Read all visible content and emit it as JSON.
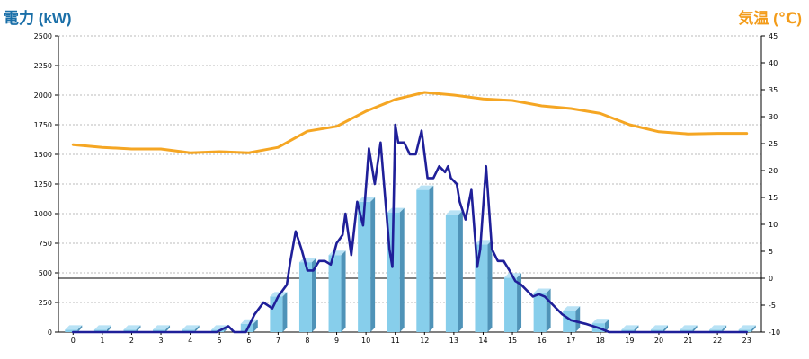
{
  "chart_data": {
    "type": "bar",
    "left_axis_title": "電力 (kW)",
    "right_axis_title": "気温 (℃)",
    "left_axis": {
      "min": 0,
      "max": 2500,
      "step": 250,
      "tick_labels": [
        "0",
        "250",
        "500",
        "750",
        "1000",
        "1250",
        "1500",
        "1750",
        "2000",
        "2250",
        "2500"
      ]
    },
    "right_axis": {
      "min": -10,
      "max": 45,
      "step": 5,
      "tick_labels": [
        "-10",
        "-5",
        "0",
        "5",
        "10",
        "15",
        "20",
        "25",
        "30",
        "35",
        "40",
        "45"
      ]
    },
    "categories": [
      "0",
      "1",
      "2",
      "3",
      "4",
      "5",
      "6",
      "7",
      "8",
      "9",
      "10",
      "11",
      "12",
      "13",
      "14",
      "15",
      "16",
      "17",
      "18",
      "19",
      "20",
      "21",
      "22",
      "23"
    ],
    "grid": "horizontal dashed",
    "zero_line_on_right_axis": 0,
    "series": [
      {
        "kind": "bar",
        "axis": "left",
        "color": "#87ceeb",
        "values": [
          20,
          20,
          20,
          20,
          20,
          20,
          70,
          300,
          590,
          650,
          1100,
          1010,
          1200,
          990,
          740,
          460,
          330,
          180,
          75,
          20,
          20,
          20,
          20,
          20
        ]
      },
      {
        "kind": "line",
        "axis": "right",
        "color": "#f5a623",
        "points": [
          [
            0,
            24.8
          ],
          [
            1,
            24.3
          ],
          [
            2,
            24.0
          ],
          [
            3,
            24.0
          ],
          [
            4,
            23.3
          ],
          [
            5,
            23.5
          ],
          [
            6,
            23.3
          ],
          [
            7,
            24.3
          ],
          [
            8,
            27.3
          ],
          [
            9,
            28.2
          ],
          [
            10,
            31.0
          ],
          [
            11,
            33.2
          ],
          [
            12,
            34.5
          ],
          [
            13,
            34.0
          ],
          [
            14,
            33.3
          ],
          [
            15,
            33.0
          ],
          [
            16,
            32.0
          ],
          [
            17,
            31.5
          ],
          [
            18,
            30.6
          ],
          [
            19,
            28.5
          ],
          [
            20,
            27.2
          ],
          [
            21,
            26.8
          ],
          [
            22,
            26.9
          ],
          [
            23,
            26.9
          ]
        ]
      },
      {
        "kind": "line",
        "axis": "left",
        "color": "#1f1f99",
        "points": [
          [
            0,
            0
          ],
          [
            4.9,
            0
          ],
          [
            5.3,
            50
          ],
          [
            5.5,
            0
          ],
          [
            5.9,
            0
          ],
          [
            6.2,
            150
          ],
          [
            6.5,
            250
          ],
          [
            6.8,
            200
          ],
          [
            7.0,
            300
          ],
          [
            7.3,
            400
          ],
          [
            7.4,
            570
          ],
          [
            7.6,
            850
          ],
          [
            7.8,
            700
          ],
          [
            8.0,
            520
          ],
          [
            8.2,
            520
          ],
          [
            8.4,
            600
          ],
          [
            8.6,
            600
          ],
          [
            8.8,
            570
          ],
          [
            9.0,
            750
          ],
          [
            9.2,
            820
          ],
          [
            9.3,
            1000
          ],
          [
            9.5,
            650
          ],
          [
            9.7,
            1100
          ],
          [
            9.9,
            900
          ],
          [
            10.1,
            1550
          ],
          [
            10.3,
            1250
          ],
          [
            10.5,
            1600
          ],
          [
            10.8,
            700
          ],
          [
            10.9,
            550
          ],
          [
            11.0,
            1750
          ],
          [
            11.1,
            1600
          ],
          [
            11.3,
            1600
          ],
          [
            11.5,
            1500
          ],
          [
            11.7,
            1500
          ],
          [
            11.9,
            1700
          ],
          [
            12.1,
            1300
          ],
          [
            12.3,
            1300
          ],
          [
            12.5,
            1400
          ],
          [
            12.7,
            1350
          ],
          [
            12.8,
            1400
          ],
          [
            12.9,
            1300
          ],
          [
            13.1,
            1250
          ],
          [
            13.2,
            1100
          ],
          [
            13.4,
            950
          ],
          [
            13.6,
            1200
          ],
          [
            13.8,
            550
          ],
          [
            13.9,
            700
          ],
          [
            14.1,
            1400
          ],
          [
            14.3,
            700
          ],
          [
            14.5,
            600
          ],
          [
            14.7,
            600
          ],
          [
            14.9,
            520
          ],
          [
            15.1,
            430
          ],
          [
            15.3,
            400
          ],
          [
            15.5,
            350
          ],
          [
            15.7,
            300
          ],
          [
            15.9,
            320
          ],
          [
            16.1,
            300
          ],
          [
            16.3,
            250
          ],
          [
            16.5,
            200
          ],
          [
            16.7,
            150
          ],
          [
            17.0,
            100
          ],
          [
            17.5,
            70
          ],
          [
            18.0,
            30
          ],
          [
            18.3,
            0
          ],
          [
            23.0,
            0
          ]
        ]
      }
    ]
  }
}
